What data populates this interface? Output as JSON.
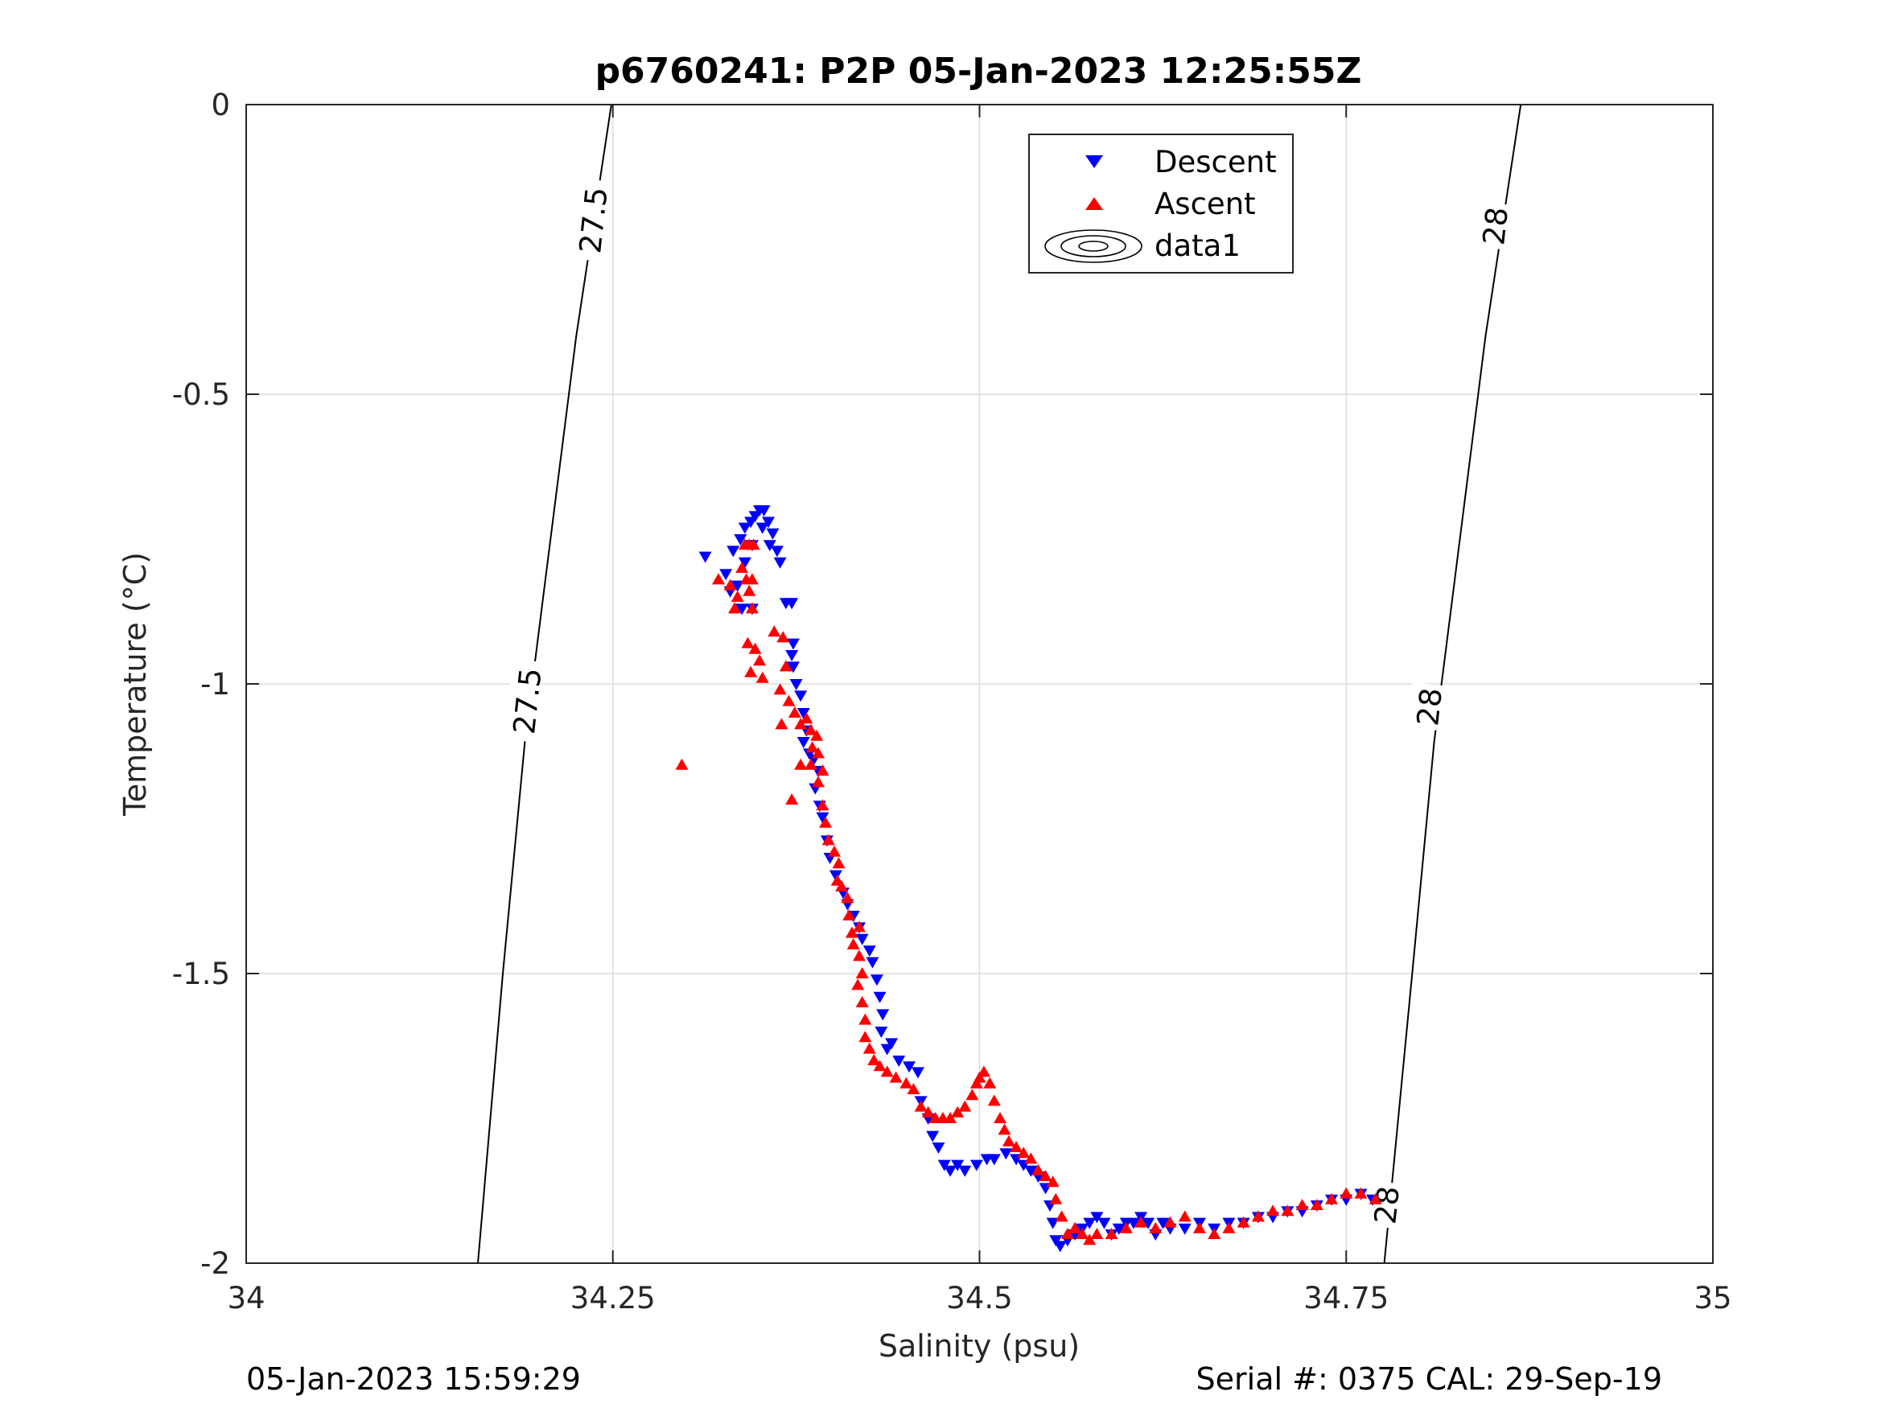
{
  "footer": {
    "left": "05-Jan-2023 15:59:29",
    "right": "Serial #: 0375  CAL: 29-Sep-19"
  },
  "chart_data": {
    "type": "scatter",
    "title": "p6760241: P2P 05-Jan-2023 12:25:55Z",
    "xlabel": "Salinity (psu)",
    "ylabel": "Temperature (°C)",
    "xlim": [
      34,
      35
    ],
    "ylim": [
      -2,
      0
    ],
    "xticks": [
      34,
      34.25,
      34.5,
      34.75,
      35
    ],
    "xtick_labels": [
      "34",
      "34.25",
      "34.5",
      "34.75",
      "35"
    ],
    "yticks": [
      0,
      -0.5,
      -1,
      -1.5,
      -2
    ],
    "ytick_labels": [
      "0",
      "-0.5",
      "-1",
      "-1.5",
      "-2"
    ],
    "grid": true,
    "legend_position": "top-center",
    "legend": [
      "Descent",
      "Ascent",
      "data1"
    ],
    "colors": {
      "descent": "#0000ff",
      "ascent": "#ff0000",
      "contour": "#000000",
      "grid": "#dcdcdc"
    },
    "contours": [
      {
        "label": "27.5",
        "points": [
          [
            34.249,
            0
          ],
          [
            34.225,
            -0.4
          ],
          [
            34.205,
            -0.8
          ],
          [
            34.19,
            -1.1
          ],
          [
            34.175,
            -1.5
          ],
          [
            34.158,
            -2
          ]
        ]
      },
      {
        "label": "28",
        "points": [
          [
            34.869,
            0
          ],
          [
            34.845,
            -0.4
          ],
          [
            34.825,
            -0.8
          ],
          [
            34.81,
            -1.1
          ],
          [
            34.795,
            -1.5
          ],
          [
            34.776,
            -2
          ]
        ]
      }
    ],
    "contour_labels": [
      {
        "text": "27.5",
        "x": 34.238,
        "y": -0.2
      },
      {
        "text": "27.5",
        "x": 34.193,
        "y": -1.03
      },
      {
        "text": "28",
        "x": 34.853,
        "y": -0.21
      },
      {
        "text": "28",
        "x": 34.808,
        "y": -1.04
      },
      {
        "text": "28",
        "x": 34.779,
        "y": -1.9
      }
    ],
    "series": [
      {
        "name": "Descent",
        "marker": "triangle-down",
        "points": [
          [
            34.313,
            -0.78
          ],
          [
            34.327,
            -0.81
          ],
          [
            34.332,
            -0.77
          ],
          [
            34.337,
            -0.75
          ],
          [
            34.34,
            -0.73
          ],
          [
            34.344,
            -0.72
          ],
          [
            34.347,
            -0.71
          ],
          [
            34.35,
            -0.7
          ],
          [
            34.353,
            -0.7
          ],
          [
            34.356,
            -0.72
          ],
          [
            34.359,
            -0.74
          ],
          [
            34.362,
            -0.77
          ],
          [
            34.364,
            -0.79
          ],
          [
            34.357,
            -0.76
          ],
          [
            34.352,
            -0.73
          ],
          [
            34.345,
            -0.76
          ],
          [
            34.34,
            -0.79
          ],
          [
            34.335,
            -0.83
          ],
          [
            34.33,
            -0.84
          ],
          [
            34.338,
            -0.87
          ],
          [
            34.345,
            -0.87
          ],
          [
            34.368,
            -0.86
          ],
          [
            34.372,
            -0.86
          ],
          [
            34.373,
            -0.93
          ],
          [
            34.372,
            -0.95
          ],
          [
            34.373,
            -0.97
          ],
          [
            34.375,
            -1.0
          ],
          [
            34.378,
            -1.02
          ],
          [
            34.38,
            -1.05
          ],
          [
            34.382,
            -1.08
          ],
          [
            34.38,
            -1.1
          ],
          [
            34.384,
            -1.12
          ],
          [
            34.387,
            -1.13
          ],
          [
            34.39,
            -1.15
          ],
          [
            34.388,
            -1.18
          ],
          [
            34.391,
            -1.21
          ],
          [
            34.393,
            -1.23
          ],
          [
            34.396,
            -1.27
          ],
          [
            34.398,
            -1.3
          ],
          [
            34.402,
            -1.33
          ],
          [
            34.407,
            -1.36
          ],
          [
            34.41,
            -1.38
          ],
          [
            34.414,
            -1.4
          ],
          [
            34.418,
            -1.42
          ],
          [
            34.42,
            -1.44
          ],
          [
            34.425,
            -1.46
          ],
          [
            34.427,
            -1.48
          ],
          [
            34.43,
            -1.51
          ],
          [
            34.432,
            -1.54
          ],
          [
            34.434,
            -1.57
          ],
          [
            34.433,
            -1.6
          ],
          [
            34.437,
            -1.63
          ],
          [
            34.44,
            -1.62
          ],
          [
            34.445,
            -1.65
          ],
          [
            34.452,
            -1.66
          ],
          [
            34.458,
            -1.67
          ],
          [
            34.46,
            -1.72
          ],
          [
            34.465,
            -1.75
          ],
          [
            34.468,
            -1.78
          ],
          [
            34.472,
            -1.8
          ],
          [
            34.476,
            -1.83
          ],
          [
            34.48,
            -1.84
          ],
          [
            34.485,
            -1.83
          ],
          [
            34.49,
            -1.84
          ],
          [
            34.498,
            -1.83
          ],
          [
            34.505,
            -1.82
          ],
          [
            34.51,
            -1.82
          ],
          [
            34.518,
            -1.81
          ],
          [
            34.525,
            -1.82
          ],
          [
            34.53,
            -1.83
          ],
          [
            34.535,
            -1.84
          ],
          [
            34.54,
            -1.85
          ],
          [
            34.545,
            -1.87
          ],
          [
            34.548,
            -1.9
          ],
          [
            34.55,
            -1.93
          ],
          [
            34.552,
            -1.96
          ],
          [
            34.555,
            -1.97
          ],
          [
            34.56,
            -1.96
          ],
          [
            34.565,
            -1.95
          ],
          [
            34.57,
            -1.94
          ],
          [
            34.575,
            -1.93
          ],
          [
            34.58,
            -1.92
          ],
          [
            34.585,
            -1.93
          ],
          [
            34.59,
            -1.95
          ],
          [
            34.595,
            -1.94
          ],
          [
            34.6,
            -1.93
          ],
          [
            34.605,
            -1.93
          ],
          [
            34.61,
            -1.92
          ],
          [
            34.615,
            -1.93
          ],
          [
            34.62,
            -1.95
          ],
          [
            34.625,
            -1.93
          ],
          [
            34.63,
            -1.94
          ],
          [
            34.64,
            -1.94
          ],
          [
            34.65,
            -1.93
          ],
          [
            34.66,
            -1.94
          ],
          [
            34.67,
            -1.93
          ],
          [
            34.68,
            -1.93
          ],
          [
            34.69,
            -1.92
          ],
          [
            34.7,
            -1.92
          ],
          [
            34.71,
            -1.91
          ],
          [
            34.72,
            -1.91
          ],
          [
            34.73,
            -1.9
          ],
          [
            34.74,
            -1.89
          ],
          [
            34.75,
            -1.89
          ],
          [
            34.76,
            -1.88
          ],
          [
            34.768,
            -1.89
          ]
        ]
      },
      {
        "name": "Ascent",
        "marker": "triangle-up",
        "points": [
          [
            34.297,
            -1.14
          ],
          [
            34.322,
            -0.82
          ],
          [
            34.33,
            -0.83
          ],
          [
            34.335,
            -0.85
          ],
          [
            34.333,
            -0.87
          ],
          [
            34.338,
            -0.8
          ],
          [
            34.34,
            -0.76
          ],
          [
            34.343,
            -0.76
          ],
          [
            34.346,
            -0.76
          ],
          [
            34.341,
            -0.82
          ],
          [
            34.345,
            -0.82
          ],
          [
            34.343,
            -0.84
          ],
          [
            34.345,
            -0.87
          ],
          [
            34.342,
            -0.93
          ],
          [
            34.347,
            -0.94
          ],
          [
            34.35,
            -0.96
          ],
          [
            34.344,
            -0.98
          ],
          [
            34.352,
            -0.99
          ],
          [
            34.36,
            -0.91
          ],
          [
            34.366,
            -0.92
          ],
          [
            34.368,
            -0.97
          ],
          [
            34.364,
            -1.01
          ],
          [
            34.37,
            -1.03
          ],
          [
            34.374,
            -1.05
          ],
          [
            34.365,
            -1.07
          ],
          [
            34.378,
            -1.07
          ],
          [
            34.382,
            -1.06
          ],
          [
            34.385,
            -1.08
          ],
          [
            34.389,
            -1.09
          ],
          [
            34.386,
            -1.11
          ],
          [
            34.39,
            -1.12
          ],
          [
            34.385,
            -1.14
          ],
          [
            34.378,
            -1.14
          ],
          [
            34.393,
            -1.15
          ],
          [
            34.39,
            -1.17
          ],
          [
            34.372,
            -1.2
          ],
          [
            34.393,
            -1.21
          ],
          [
            34.395,
            -1.24
          ],
          [
            34.397,
            -1.27
          ],
          [
            34.401,
            -1.29
          ],
          [
            34.404,
            -1.31
          ],
          [
            34.403,
            -1.34
          ],
          [
            34.406,
            -1.35
          ],
          [
            34.41,
            -1.37
          ],
          [
            34.411,
            -1.4
          ],
          [
            34.413,
            -1.43
          ],
          [
            34.418,
            -1.42
          ],
          [
            34.414,
            -1.45
          ],
          [
            34.418,
            -1.47
          ],
          [
            34.42,
            -1.5
          ],
          [
            34.417,
            -1.52
          ],
          [
            34.42,
            -1.55
          ],
          [
            34.422,
            -1.58
          ],
          [
            34.422,
            -1.61
          ],
          [
            34.425,
            -1.63
          ],
          [
            34.428,
            -1.65
          ],
          [
            34.432,
            -1.66
          ],
          [
            34.437,
            -1.67
          ],
          [
            34.443,
            -1.68
          ],
          [
            34.45,
            -1.69
          ],
          [
            34.455,
            -1.7
          ],
          [
            34.46,
            -1.73
          ],
          [
            34.465,
            -1.74
          ],
          [
            34.47,
            -1.75
          ],
          [
            34.475,
            -1.75
          ],
          [
            34.48,
            -1.75
          ],
          [
            34.485,
            -1.74
          ],
          [
            34.49,
            -1.73
          ],
          [
            34.495,
            -1.71
          ],
          [
            34.498,
            -1.69
          ],
          [
            34.5,
            -1.68
          ],
          [
            34.503,
            -1.67
          ],
          [
            34.507,
            -1.69
          ],
          [
            34.51,
            -1.72
          ],
          [
            34.514,
            -1.75
          ],
          [
            34.517,
            -1.77
          ],
          [
            34.52,
            -1.79
          ],
          [
            34.525,
            -1.8
          ],
          [
            34.53,
            -1.81
          ],
          [
            34.535,
            -1.82
          ],
          [
            34.54,
            -1.84
          ],
          [
            34.545,
            -1.85
          ],
          [
            34.55,
            -1.86
          ],
          [
            34.552,
            -1.89
          ],
          [
            34.556,
            -1.92
          ],
          [
            34.56,
            -1.95
          ],
          [
            34.565,
            -1.94
          ],
          [
            34.57,
            -1.95
          ],
          [
            34.575,
            -1.96
          ],
          [
            34.58,
            -1.95
          ],
          [
            34.59,
            -1.95
          ],
          [
            34.6,
            -1.94
          ],
          [
            34.61,
            -1.93
          ],
          [
            34.62,
            -1.94
          ],
          [
            34.63,
            -1.93
          ],
          [
            34.64,
            -1.92
          ],
          [
            34.65,
            -1.94
          ],
          [
            34.66,
            -1.95
          ],
          [
            34.67,
            -1.94
          ],
          [
            34.68,
            -1.93
          ],
          [
            34.69,
            -1.92
          ],
          [
            34.7,
            -1.91
          ],
          [
            34.71,
            -1.91
          ],
          [
            34.72,
            -1.9
          ],
          [
            34.73,
            -1.9
          ],
          [
            34.74,
            -1.89
          ],
          [
            34.75,
            -1.88
          ],
          [
            34.76,
            -1.88
          ],
          [
            34.77,
            -1.89
          ]
        ]
      }
    ]
  }
}
